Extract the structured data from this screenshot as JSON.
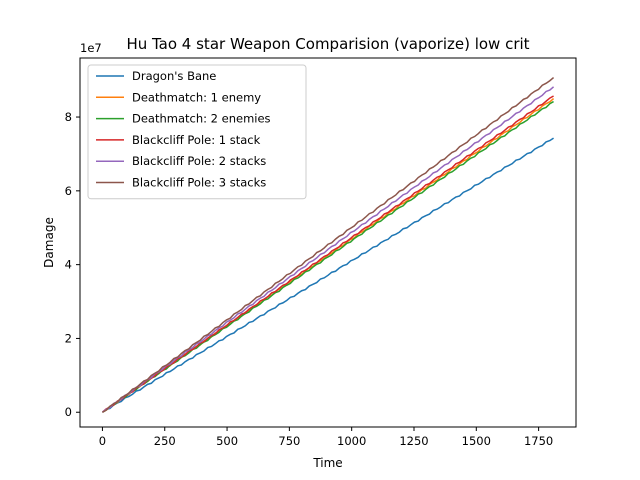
{
  "chart_data": {
    "type": "line",
    "title": "Hu Tao 4 star Weapon Comparision (vaporize) low crit",
    "xlabel": "Time",
    "ylabel": "Damage",
    "y_offset_text": "1e7",
    "xlim": [
      -90,
      1900
    ],
    "ylim": [
      -0.4,
      9.6
    ],
    "y_unit_scale": 10000000,
    "xticks": [
      0,
      250,
      500,
      750,
      1000,
      1250,
      1500,
      1750
    ],
    "yticks": [
      0,
      2,
      4,
      6,
      8
    ],
    "grid": false,
    "legend": "top-left",
    "series": [
      {
        "name": "Dragon's Bane",
        "color": "#1f77b4",
        "x": [
          0,
          1810
        ],
        "y": [
          0,
          7.43
        ]
      },
      {
        "name": "Deathmatch: 1 enemy",
        "color": "#ff7f0e",
        "x": [
          0,
          1810
        ],
        "y": [
          0,
          8.5
        ]
      },
      {
        "name": "Deathmatch: 2 enemies",
        "color": "#2ca02c",
        "x": [
          0,
          1810
        ],
        "y": [
          0,
          8.42
        ]
      },
      {
        "name": "Blackcliff Pole: 1 stack",
        "color": "#d62728",
        "x": [
          0,
          1810
        ],
        "y": [
          0,
          8.57
        ]
      },
      {
        "name": "Blackcliff Pole: 2 stacks",
        "color": "#9467bd",
        "x": [
          0,
          1810
        ],
        "y": [
          0,
          8.82
        ]
      },
      {
        "name": "Blackcliff Pole: 3 stacks",
        "color": "#8c564b",
        "x": [
          0,
          1810
        ],
        "y": [
          0,
          9.07
        ]
      }
    ]
  }
}
